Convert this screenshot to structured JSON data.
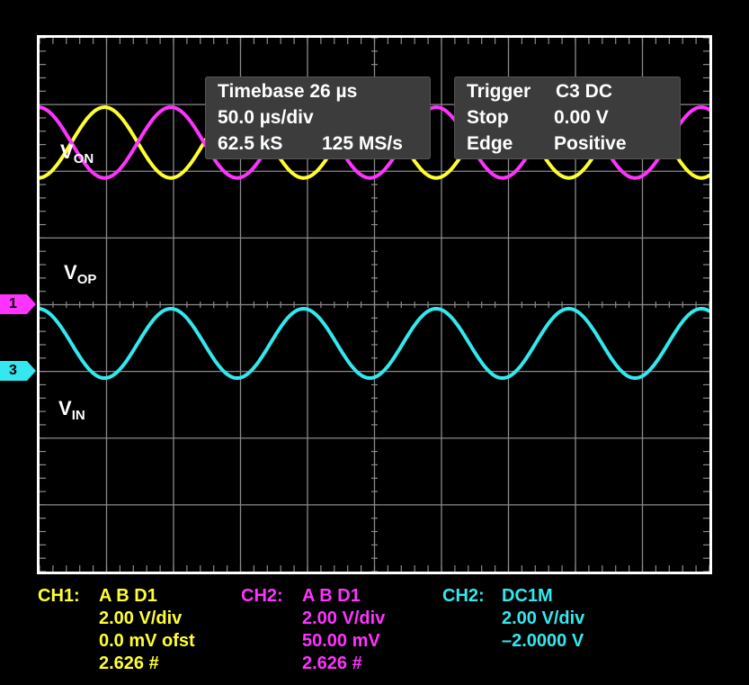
{
  "colors": {
    "ch1": "#ffff33",
    "ch2": "#ff33ff",
    "ch3": "#33e8ee",
    "grid": "#8a8a8a",
    "frame": "#ffffff",
    "background": "#000000"
  },
  "timebase": {
    "line1": "Timebase 26 µs",
    "line2": "50.0 µs/div",
    "line3_samples": "62.5 kS",
    "line3_rate": "125 MS/s"
  },
  "trigger": {
    "rows": [
      {
        "key": "Trigger",
        "value": "C3  DC"
      },
      {
        "key": "Stop",
        "value": "0.00 V"
      },
      {
        "key": "Edge",
        "value": "Positive"
      }
    ]
  },
  "trace_labels": {
    "von": {
      "main": "V",
      "sub": "ON"
    },
    "vop": {
      "main": "V",
      "sub": "OP"
    },
    "vin": {
      "main": "V",
      "sub": "IN"
    }
  },
  "markers": {
    "ch1": "1",
    "ch3": "3"
  },
  "channels": [
    {
      "header": "CH1:",
      "mode": "A B D1",
      "lines": [
        "2.00 V/div",
        "0.0 mV ofst",
        "2.626 #"
      ],
      "color_key": "ch1"
    },
    {
      "header": "CH2:",
      "mode": "A B D1",
      "lines": [
        "2.00 V/div",
        "50.00 mV",
        "2.626 #"
      ],
      "color_key": "ch2"
    },
    {
      "header": "CH2:",
      "mode": "DC1M",
      "lines": [
        "2.00 V/div",
        "–2.0000 V"
      ],
      "color_key": "ch3"
    }
  ],
  "chart_data": {
    "type": "line",
    "grid": true,
    "x_divisions": 10,
    "y_divisions": 8,
    "x_unit": "div",
    "y_unit": "div",
    "xlim": [
      0,
      10
    ],
    "ylim": [
      -4,
      4
    ],
    "series": [
      {
        "name": "VON",
        "color_key": "ch1",
        "waveform": "sine",
        "period_div": 1.98,
        "amplitude_div": 0.53,
        "center_div": 2.43,
        "phase_deg": 180
      },
      {
        "name": "VOP",
        "color_key": "ch2",
        "waveform": "sine",
        "period_div": 1.98,
        "amplitude_div": 0.53,
        "center_div": 2.43,
        "phase_deg": 0
      },
      {
        "name": "VIN",
        "color_key": "ch3",
        "waveform": "sine",
        "period_div": 1.98,
        "amplitude_div": 0.52,
        "center_div": -0.58,
        "phase_deg": 0
      }
    ]
  }
}
